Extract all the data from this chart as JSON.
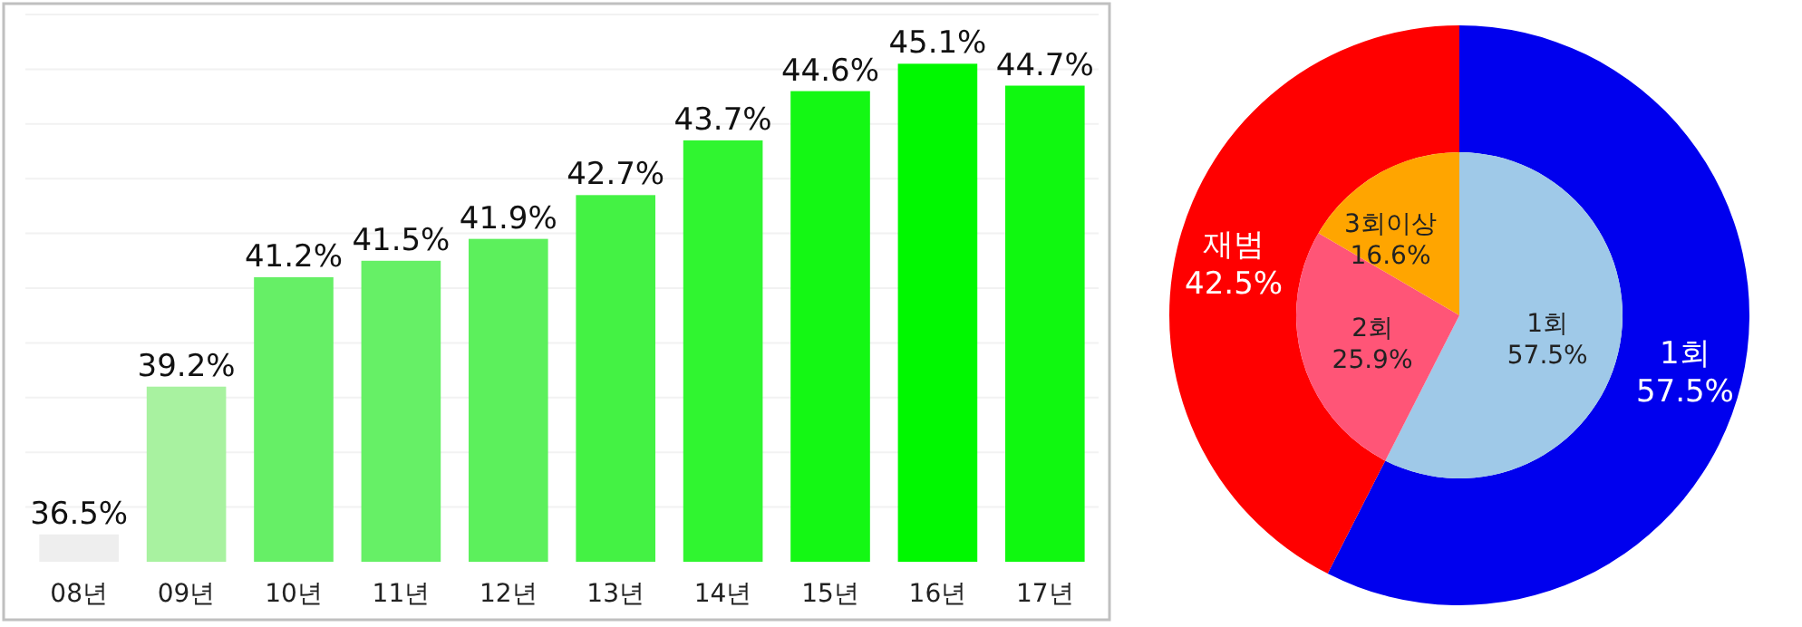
{
  "chart_data": [
    {
      "type": "bar",
      "categories": [
        "08년",
        "09년",
        "10년",
        "11년",
        "12년",
        "13년",
        "14년",
        "15년",
        "16년",
        "17년"
      ],
      "values": [
        36.5,
        39.2,
        41.2,
        41.5,
        41.9,
        42.7,
        43.7,
        44.6,
        45.1,
        44.7
      ],
      "value_labels": [
        "36.5%",
        "39.2%",
        "41.2%",
        "41.5%",
        "41.9%",
        "42.7%",
        "43.7%",
        "44.6%",
        "45.1%",
        "44.7%"
      ],
      "colors": [
        "#eeeeee",
        "#a8f2a0",
        "#66ef66",
        "#66f066",
        "#5cf05c",
        "#44f244",
        "#30f530",
        "#14f814",
        "#00f800",
        "#10f810"
      ],
      "ylim": [
        36,
        46
      ],
      "yticks": [
        {
          "value": 37,
          "label": null
        },
        {
          "value": 38,
          "label": null
        },
        {
          "value": 39,
          "label": null
        },
        {
          "value": 40,
          "label": null
        },
        {
          "value": 41,
          "label": null
        },
        {
          "value": 42,
          "label": null
        },
        {
          "value": 43,
          "label": null
        },
        {
          "value": 44,
          "label": null
        },
        {
          "value": 45,
          "label": null
        },
        {
          "value": 46,
          "label": null
        }
      ],
      "grid": "y",
      "tick_labels": "x"
    },
    {
      "type": "pie",
      "categories": [
        "1회",
        "2회",
        "3회이상"
      ],
      "values": [
        57.5,
        25.9,
        16.6
      ],
      "value_labels": [
        "57.5%",
        "25.9%",
        "16.6%"
      ],
      "colors": [
        "#9fc9e8",
        "#ff5577",
        "#ffa500"
      ]
    },
    {
      "type": "donut",
      "categories": [
        "1회",
        "재범"
      ],
      "values": [
        57.5,
        42.5
      ],
      "value_labels": [
        "57.5%",
        "42.5%"
      ],
      "colors": [
        "#0000ee",
        "#ff0000"
      ]
    }
  ]
}
